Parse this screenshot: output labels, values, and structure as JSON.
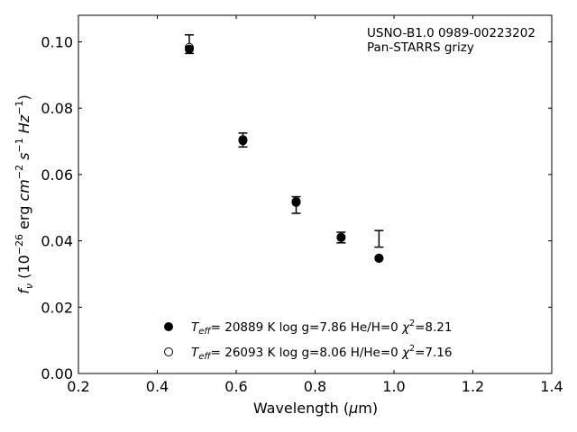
{
  "chart_data": {
    "type": "scatter",
    "annotation": [
      "USNO-B1.0 0989-00223202",
      "Pan-STARRS grizy"
    ],
    "xlabel": {
      "main": "Wavelength (",
      "mu": "μ",
      "unit": "m)"
    },
    "ylabel": {
      "f": "f",
      "nu": "ν",
      "open": " (10",
      "exp1": "−26",
      "mid": " erg ",
      "cm": "cm",
      "exp2": "−2",
      "s": " s",
      "exp3": "−1",
      "hz": " Hz",
      "exp4": "−1",
      "close": ")"
    },
    "xlim": [
      0.2,
      1.4
    ],
    "ylim": [
      0.0,
      0.108
    ],
    "xticks": [
      "0.2",
      "0.4",
      "0.6",
      "0.8",
      "1.0",
      "1.2",
      "1.4"
    ],
    "yticks": [
      "0.00",
      "0.02",
      "0.04",
      "0.06",
      "0.08",
      "0.10"
    ],
    "grid": false,
    "legend_position": "lower-center",
    "observed": {
      "x": [
        0.481,
        0.617,
        0.752,
        0.866,
        0.962
      ],
      "y": [
        0.0993,
        0.0704,
        0.0508,
        0.041,
        0.0406
      ],
      "yerr": [
        0.0028,
        0.0021,
        0.0025,
        0.0016,
        0.0025
      ],
      "marker": "errorbar-caps"
    },
    "series": [
      {
        "name": {
          "t": "T",
          "sub": "eff",
          "rest": "= 20889 K  log g=7.86  He/H=0  ",
          "chi": "χ",
          "sup": "2",
          "val": "=8.21"
        },
        "marker": "filled-circle",
        "color": "#000000",
        "x": [
          0.481,
          0.617,
          0.752,
          0.866,
          0.962
        ],
        "y": [
          0.0978,
          0.0702,
          0.0516,
          0.041,
          0.0348
        ]
      },
      {
        "name": {
          "t": "T",
          "sub": "eff",
          "rest": "= 26093 K  log g=8.06  H/He=0  ",
          "chi": "χ",
          "sup": "2",
          "val": "=7.16"
        },
        "marker": "open-circle",
        "color": "#000000",
        "x": [
          0.481,
          0.617,
          0.752,
          0.866,
          0.962
        ],
        "y": [
          0.0983,
          0.0705,
          0.0519,
          0.0411,
          0.0347
        ]
      }
    ]
  }
}
